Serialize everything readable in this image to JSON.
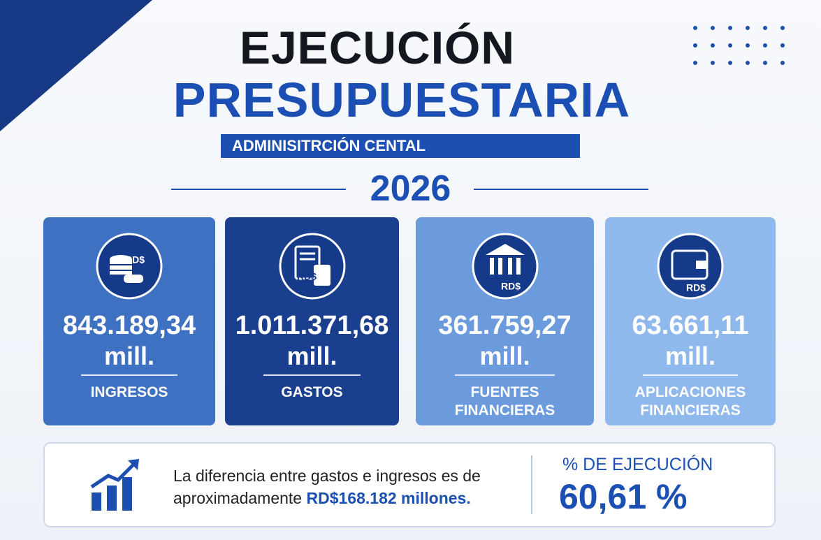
{
  "header": {
    "title_line1": "EJECUCIÓN",
    "title_line2": "PRESUPUESTARIA",
    "subtitle": "ADMINISITRCIÓN CENTAL",
    "year": "2026"
  },
  "cards": [
    {
      "icon_label": "RD$",
      "value": "843.189,34",
      "unit": "mill.",
      "label": "INGRESOS"
    },
    {
      "icon_label": "RD$",
      "value": "1.011.371,68",
      "unit": "mill.",
      "label": "GASTOS"
    },
    {
      "icon_label": "RD$",
      "value": "361.759,27",
      "unit": "mill.",
      "label": "FUENTES FINANCIERAS"
    },
    {
      "icon_label": "RD$",
      "value": "63.661,11",
      "unit": "mill.",
      "label": "APLICACIONES FINANCIERAS"
    }
  ],
  "summary": {
    "text": "La diferencia entre gastos e ingresos es de aproximadamente",
    "highlight": "RD$168.182 millones.",
    "execution_label": "% DE EJECUCIÓN",
    "execution_value": "60,61 %"
  }
}
